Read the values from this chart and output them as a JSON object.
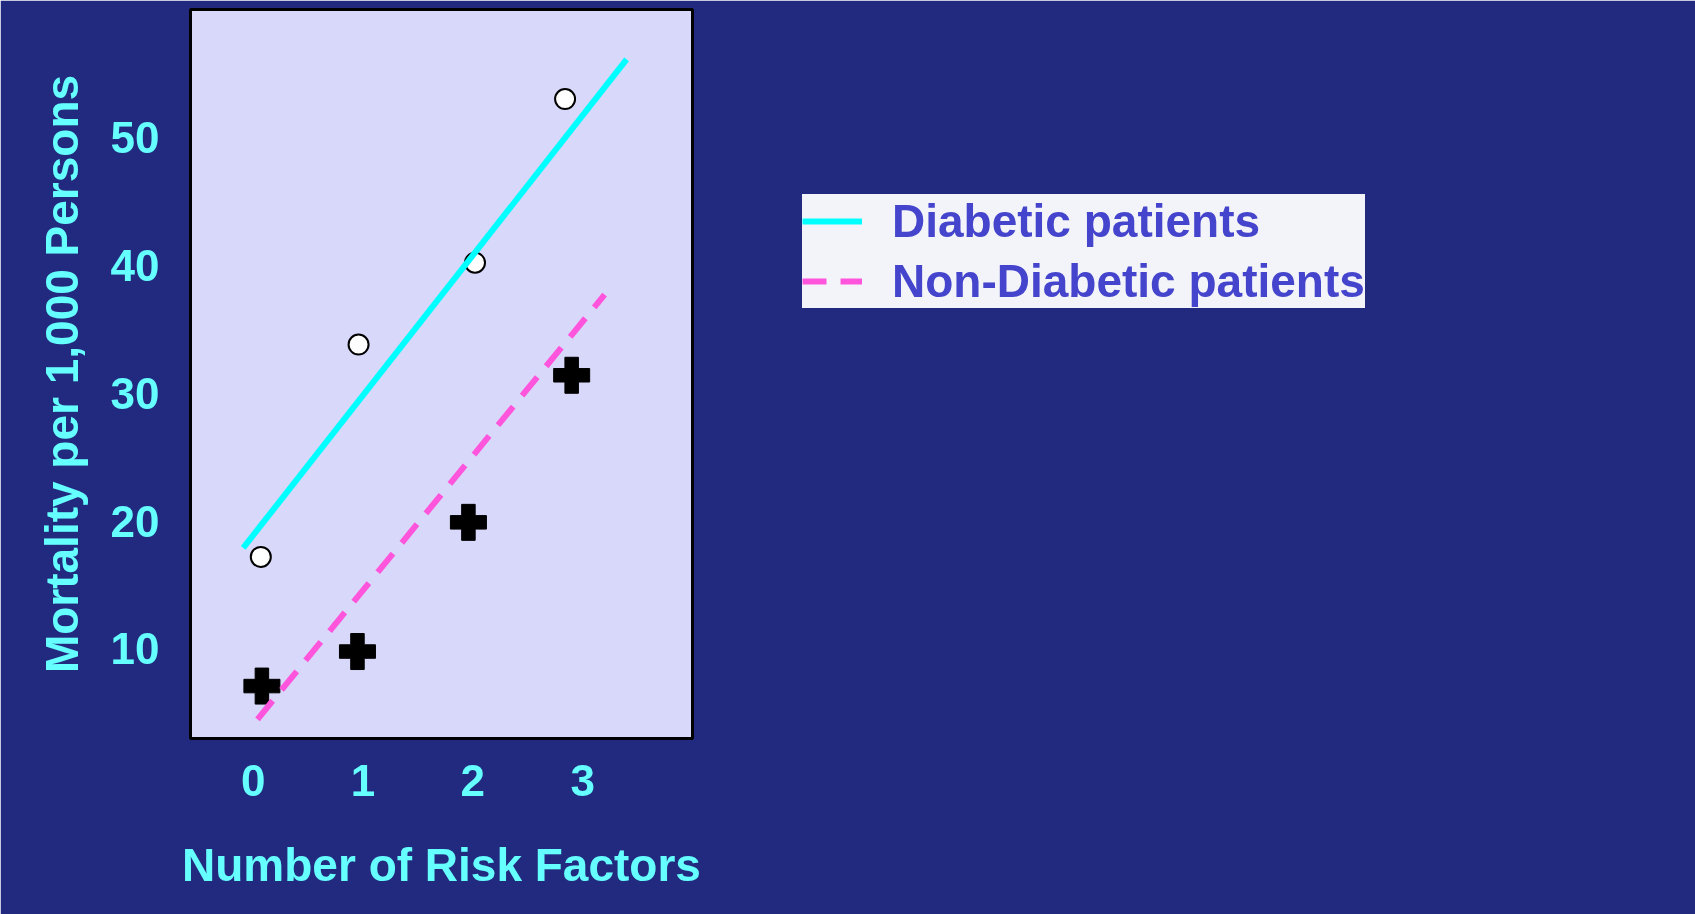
{
  "chart_data": {
    "type": "scatter",
    "xlabel": "Number of Risk Factors",
    "ylabel": "Mortality per 1,000 Persons",
    "xlim": [
      -0.57,
      4.0
    ],
    "ylim": [
      3,
      60
    ],
    "xticks": [
      0,
      1,
      2,
      3
    ],
    "yticks": [
      10,
      20,
      30,
      40,
      50
    ],
    "grid": false,
    "legend": "right",
    "series": [
      {
        "marker": "circle",
        "color": "#ffffff",
        "x": [
          0.07,
          0.96,
          2.02,
          2.84
        ],
        "values": [
          17.2,
          33.8,
          40.2,
          53.0
        ]
      },
      {
        "marker": "cross",
        "color": "#000000",
        "x": [
          0.08,
          0.95,
          1.96,
          2.9
        ],
        "values": [
          7.1,
          9.8,
          19.9,
          31.4
        ]
      },
      {
        "type": "line",
        "name": "Diabetic patients",
        "line_style": "solid",
        "color": "#00ffff",
        "x": [
          -0.09,
          3.4
        ],
        "values": [
          17.9,
          56.1
        ]
      },
      {
        "type": "line",
        "name": "Non-Diabetic patients",
        "line_style": "dashed",
        "color": "#ff55dd",
        "x": [
          0.04,
          3.2
        ],
        "values": [
          4.5,
          37.7
        ]
      }
    ]
  }
}
